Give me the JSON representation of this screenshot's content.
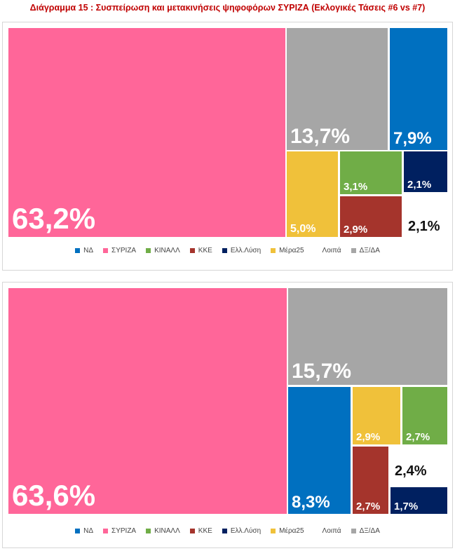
{
  "title": "Διάγραμμα 15 : Συσπείρωση και μετακινήσεις ψηφοφόρων ΣΥΡΙΖΑ (Εκλογικές Τάσεις #6 vs #7)",
  "legend": [
    {
      "name": "ΝΔ",
      "color": "#0070c0"
    },
    {
      "name": "ΣΥΡΙΖΑ",
      "color": "#ff6699"
    },
    {
      "name": "ΚΙΝΑΛΛ",
      "color": "#70ad47"
    },
    {
      "name": "ΚΚΕ",
      "color": "#a5342c"
    },
    {
      "name": "Ελλ.Λύση",
      "color": "#002060"
    },
    {
      "name": "Μέρα25",
      "color": "#f0c13a"
    },
    {
      "name": "Λοιπά",
      "color": "#ffffff"
    },
    {
      "name": "ΔΞ/ΔΑ",
      "color": "#a6a6a6"
    }
  ],
  "chart_data": [
    {
      "type": "treemap",
      "values": [
        {
          "name": "ΣΥΡΙΖΑ",
          "value": 63.2,
          "label": "63,2%"
        },
        {
          "name": "ΔΞ/ΔΑ",
          "value": 13.7,
          "label": "13,7%"
        },
        {
          "name": "ΝΔ",
          "value": 7.9,
          "label": "7,9%"
        },
        {
          "name": "Μέρα25",
          "value": 5.0,
          "label": "5,0%"
        },
        {
          "name": "ΚΙΝΑΛΛ",
          "value": 3.1,
          "label": "3,1%"
        },
        {
          "name": "ΚΚΕ",
          "value": 2.9,
          "label": "2,9%"
        },
        {
          "name": "Ελλ.Λύση",
          "value": 2.1,
          "label": "2,1%"
        },
        {
          "name": "Λοιπά",
          "value": 2.1,
          "label": "2,1%"
        }
      ]
    },
    {
      "type": "treemap",
      "values": [
        {
          "name": "ΣΥΡΙΖΑ",
          "value": 63.6,
          "label": "63,6%"
        },
        {
          "name": "ΔΞ/ΔΑ",
          "value": 15.7,
          "label": "15,7%"
        },
        {
          "name": "ΝΔ",
          "value": 8.3,
          "label": "8,3%"
        },
        {
          "name": "Μέρα25",
          "value": 2.9,
          "label": "2,9%"
        },
        {
          "name": "ΚΙΝΑΛΛ",
          "value": 2.7,
          "label": "2,7%"
        },
        {
          "name": "ΚΚΕ",
          "value": 2.7,
          "label": "2,7%"
        },
        {
          "name": "Λοιπά",
          "value": 2.4,
          "label": "2,4%"
        },
        {
          "name": "Ελλ.Λύση",
          "value": 1.7,
          "label": "1,7%"
        }
      ]
    }
  ]
}
